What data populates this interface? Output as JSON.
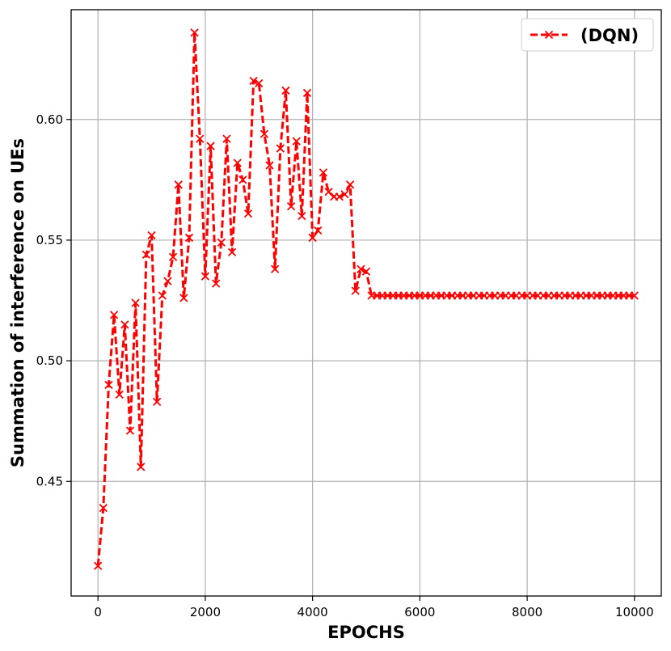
{
  "chart_data": {
    "type": "line",
    "xlabel": "EPOCHS",
    "ylabel": "Summation of interference on UEs",
    "xlim": [
      -500,
      10500
    ],
    "ylim": [
      0.4025,
      0.6455
    ],
    "xticks": [
      0,
      2000,
      4000,
      6000,
      8000,
      10000
    ],
    "yticks": [
      0.45,
      0.5,
      0.55,
      0.6
    ],
    "ytick_labels": [
      "0.45",
      "0.50",
      "0.55",
      "0.60"
    ],
    "grid": true,
    "legend_position": "top-right",
    "series": [
      {
        "name": "(DQN)",
        "color": "#ff0000",
        "linestyle": "dashed",
        "marker": "x",
        "x": [
          0,
          100,
          200,
          300,
          400,
          500,
          600,
          700,
          800,
          900,
          1000,
          1100,
          1200,
          1300,
          1400,
          1500,
          1600,
          1700,
          1800,
          1900,
          2000,
          2100,
          2200,
          2300,
          2400,
          2500,
          2600,
          2700,
          2800,
          2900,
          3000,
          3100,
          3200,
          3300,
          3400,
          3500,
          3600,
          3700,
          3800,
          3900,
          4000,
          4100,
          4200,
          4300,
          4400,
          4500,
          4600,
          4700,
          4800,
          4900,
          5000,
          5100,
          5200,
          5300,
          5400,
          5500,
          5600,
          5700,
          5800,
          5900,
          6000,
          6100,
          6200,
          6300,
          6400,
          6500,
          6600,
          6700,
          6800,
          6900,
          7000,
          7100,
          7200,
          7300,
          7400,
          7500,
          7600,
          7700,
          7800,
          7900,
          8000,
          8100,
          8200,
          8300,
          8400,
          8500,
          8600,
          8700,
          8800,
          8900,
          9000,
          9100,
          9200,
          9300,
          9400,
          9500,
          9600,
          9700,
          9800,
          9900,
          10000
        ],
        "y": [
          0.415,
          0.439,
          0.49,
          0.519,
          0.486,
          0.515,
          0.471,
          0.524,
          0.456,
          0.544,
          0.552,
          0.483,
          0.527,
          0.533,
          0.543,
          0.573,
          0.526,
          0.551,
          0.636,
          0.592,
          0.535,
          0.589,
          0.532,
          0.549,
          0.592,
          0.545,
          0.582,
          0.575,
          0.561,
          0.616,
          0.615,
          0.594,
          0.581,
          0.538,
          0.588,
          0.612,
          0.564,
          0.591,
          0.56,
          0.611,
          0.551,
          0.554,
          0.578,
          0.57,
          0.568,
          0.568,
          0.569,
          0.573,
          0.529,
          0.538,
          0.537,
          0.527,
          0.527,
          0.527,
          0.527,
          0.527,
          0.527,
          0.527,
          0.527,
          0.527,
          0.527,
          0.527,
          0.527,
          0.527,
          0.527,
          0.527,
          0.527,
          0.527,
          0.527,
          0.527,
          0.527,
          0.527,
          0.527,
          0.527,
          0.527,
          0.527,
          0.527,
          0.527,
          0.527,
          0.527,
          0.527,
          0.527,
          0.527,
          0.527,
          0.527,
          0.527,
          0.527,
          0.527,
          0.527,
          0.527,
          0.527,
          0.527,
          0.527,
          0.527,
          0.527,
          0.527,
          0.527,
          0.527,
          0.527,
          0.527,
          0.527
        ]
      }
    ]
  }
}
